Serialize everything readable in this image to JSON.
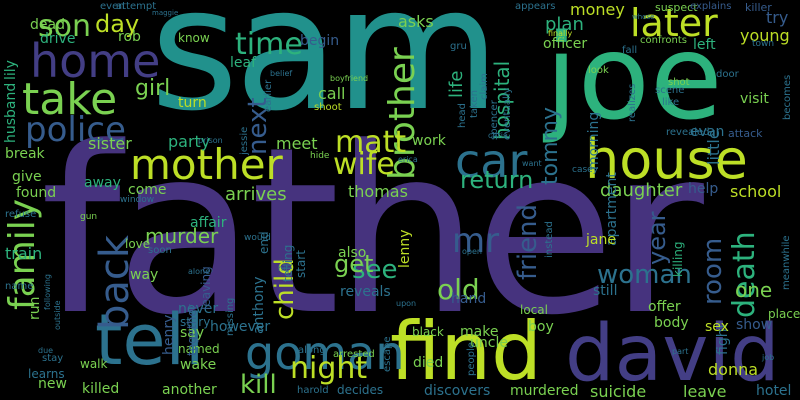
{
  "palette": {
    "purple": "#46337e",
    "indigo": "#433e85",
    "blue": "#365c8d",
    "steel": "#2c728e",
    "teal": "#21918c",
    "green": "#2db27d",
    "lime": "#7ad151",
    "yellow": "#bddf26",
    "dark": "#440154"
  },
  "words": [
    {
      "text": "father",
      "color": "#46337e"
    },
    {
      "text": "sam",
      "color": "#21918c"
    },
    {
      "text": "joe",
      "color": "#2db27d"
    },
    {
      "text": "find",
      "color": "#bddf26"
    },
    {
      "text": "david",
      "color": "#433e85"
    },
    {
      "text": "house",
      "color": "#bddf26"
    },
    {
      "text": "tell",
      "color": "#2c728e"
    },
    {
      "text": "home",
      "color": "#433e85"
    },
    {
      "text": "take",
      "color": "#7ad151"
    },
    {
      "text": "mother",
      "color": "#bddf26"
    },
    {
      "text": "car",
      "color": "#2c728e"
    },
    {
      "text": "goman",
      "color": "#2c728e"
    },
    {
      "text": "police",
      "color": "#365c8d"
    },
    {
      "text": "family",
      "color": "#7ad151"
    },
    {
      "text": "later",
      "color": "#bddf26"
    },
    {
      "text": "brother",
      "color": "#7ad151"
    },
    {
      "text": "wife",
      "color": "#bddf26"
    },
    {
      "text": "back",
      "color": "#365c8d"
    },
    {
      "text": "matt",
      "color": "#bddf26"
    },
    {
      "text": "time",
      "color": "#2db27d"
    },
    {
      "text": "son",
      "color": "#7ad151"
    },
    {
      "text": "day",
      "color": "#bddf26"
    },
    {
      "text": "night",
      "color": "#bddf26"
    },
    {
      "text": "kill",
      "color": "#7ad151"
    },
    {
      "text": "return",
      "color": "#2db27d"
    },
    {
      "text": "mr",
      "color": "#365c8d"
    },
    {
      "text": "friend",
      "color": "#365c8d"
    },
    {
      "text": "woman",
      "color": "#2c728e"
    },
    {
      "text": "old",
      "color": "#7ad151"
    },
    {
      "text": "death",
      "color": "#2db27d"
    },
    {
      "text": "room",
      "color": "#365c8d"
    },
    {
      "text": "child",
      "color": "#bddf26"
    },
    {
      "text": "see",
      "color": "#2db27d"
    },
    {
      "text": "get",
      "color": "#7ad151"
    },
    {
      "text": "next",
      "color": "#365c8d"
    },
    {
      "text": "girl",
      "color": "#7ad151"
    },
    {
      "text": "tommy",
      "color": "#2c728e"
    },
    {
      "text": "year",
      "color": "#365c8d"
    },
    {
      "text": "young",
      "color": "#bddf26"
    },
    {
      "text": "one",
      "color": "#7ad151"
    },
    {
      "text": "money",
      "color": "#bddf26"
    },
    {
      "text": "hospital",
      "color": "#2db27d"
    },
    {
      "text": "life",
      "color": "#2db27d"
    },
    {
      "text": "daughter",
      "color": "#7ad151"
    },
    {
      "text": "school",
      "color": "#bddf26"
    },
    {
      "text": "arrives",
      "color": "#7ad151"
    },
    {
      "text": "murder",
      "color": "#7ad151"
    },
    {
      "text": "thomas",
      "color": "#7ad151"
    },
    {
      "text": "train",
      "color": "#2db27d"
    },
    {
      "text": "sister",
      "color": "#7ad151"
    },
    {
      "text": "meet",
      "color": "#7ad151"
    },
    {
      "text": "party",
      "color": "#2db27d"
    },
    {
      "text": "call",
      "color": "#7ad151"
    },
    {
      "text": "turn",
      "color": "#bddf26"
    },
    {
      "text": "rob",
      "color": "#7ad151"
    },
    {
      "text": "drive",
      "color": "#2db27d"
    },
    {
      "text": "dead",
      "color": "#7ad151"
    },
    {
      "text": "plan",
      "color": "#2db27d"
    },
    {
      "text": "try",
      "color": "#365c8d"
    },
    {
      "text": "left",
      "color": "#2db27d"
    },
    {
      "text": "visit",
      "color": "#7ad151"
    },
    {
      "text": "evan",
      "color": "#2c728e"
    },
    {
      "text": "apartment",
      "color": "#2c728e"
    },
    {
      "text": "morning",
      "color": "#2c728e"
    },
    {
      "text": "little",
      "color": "#2c728e"
    },
    {
      "text": "officer",
      "color": "#7ad151"
    },
    {
      "text": "begin",
      "color": "#365c8d"
    },
    {
      "text": "know",
      "color": "#7ad151"
    },
    {
      "text": "asks",
      "color": "#7ad151"
    },
    {
      "text": "leaf",
      "color": "#2db27d"
    },
    {
      "text": "affair",
      "color": "#2db27d"
    },
    {
      "text": "come",
      "color": "#7ad151"
    },
    {
      "text": "away",
      "color": "#2db27d"
    },
    {
      "text": "give",
      "color": "#7ad151"
    },
    {
      "text": "found",
      "color": "#7ad151"
    },
    {
      "text": "break",
      "color": "#7ad151"
    },
    {
      "text": "husband",
      "color": "#2db27d"
    },
    {
      "text": "lily",
      "color": "#2db27d"
    },
    {
      "text": "work",
      "color": "#7ad151"
    },
    {
      "text": "help",
      "color": "#365c8d"
    },
    {
      "text": "way",
      "color": "#7ad151"
    },
    {
      "text": "love",
      "color": "#7ad151"
    },
    {
      "text": "also",
      "color": "#7ad151"
    },
    {
      "text": "reveals",
      "color": "#2c728e"
    },
    {
      "text": "lenny",
      "color": "#bddf26"
    },
    {
      "text": "jane",
      "color": "#bddf26"
    },
    {
      "text": "hand",
      "color": "#365c8d"
    },
    {
      "text": "uncle",
      "color": "#7ad151"
    },
    {
      "text": "offer",
      "color": "#7ad151"
    },
    {
      "text": "still",
      "color": "#2c728e"
    },
    {
      "text": "body",
      "color": "#7ad151"
    },
    {
      "text": "fight",
      "color": "#2c728e"
    },
    {
      "text": "killing",
      "color": "#2db27d"
    },
    {
      "text": "place",
      "color": "#7ad151"
    },
    {
      "text": "show",
      "color": "#365c8d"
    },
    {
      "text": "sex",
      "color": "#bddf26"
    },
    {
      "text": "however",
      "color": "#2c728e"
    },
    {
      "text": "make",
      "color": "#7ad151"
    },
    {
      "text": "boy",
      "color": "#7ad151"
    },
    {
      "text": "local",
      "color": "#7ad151"
    },
    {
      "text": "died",
      "color": "#7ad151"
    },
    {
      "text": "black",
      "color": "#7ad151"
    },
    {
      "text": "suicide",
      "color": "#7ad151"
    },
    {
      "text": "leave",
      "color": "#7ad151"
    },
    {
      "text": "donna",
      "color": "#bddf26"
    },
    {
      "text": "hotel",
      "color": "#2c728e"
    },
    {
      "text": "discovers",
      "color": "#2c728e"
    },
    {
      "text": "murdered",
      "color": "#7ad151"
    },
    {
      "text": "decides",
      "color": "#2c728e"
    },
    {
      "text": "another",
      "color": "#7ad151"
    },
    {
      "text": "wake",
      "color": "#7ad151"
    },
    {
      "text": "say",
      "color": "#7ad151"
    },
    {
      "text": "named",
      "color": "#7ad151"
    },
    {
      "text": "story",
      "color": "#2c728e"
    },
    {
      "text": "never",
      "color": "#2c728e"
    },
    {
      "text": "anthony",
      "color": "#2c728e"
    },
    {
      "text": "henry",
      "color": "#365c8d"
    },
    {
      "text": "killed",
      "color": "#7ad151"
    },
    {
      "text": "new",
      "color": "#7ad151"
    },
    {
      "text": "learns",
      "color": "#2c728e"
    },
    {
      "text": "walk",
      "color": "#7ad151"
    },
    {
      "text": "leaving",
      "color": "#365c8d"
    },
    {
      "text": "together",
      "color": "#365c8d"
    },
    {
      "text": "end",
      "color": "#2c728e"
    },
    {
      "text": "telling",
      "color": "#2c728e"
    },
    {
      "text": "start",
      "color": "#2c728e"
    },
    {
      "text": "along",
      "color": "#2c728e"
    },
    {
      "text": "arrested",
      "color": "#7ad151"
    },
    {
      "text": "escape",
      "color": "#2c728e"
    },
    {
      "text": "harold",
      "color": "#2c728e"
    },
    {
      "text": "people",
      "color": "#2c728e"
    },
    {
      "text": "instead",
      "color": "#2c728e"
    },
    {
      "text": "even",
      "color": "#2c728e"
    },
    {
      "text": "attempt",
      "color": "#2c728e"
    },
    {
      "text": "appears",
      "color": "#2c728e"
    },
    {
      "text": "suspect",
      "color": "#7ad151"
    },
    {
      "text": "explains",
      "color": "#365c8d"
    },
    {
      "text": "killer",
      "color": "#365c8d"
    },
    {
      "text": "finally",
      "color": "#bddf26"
    },
    {
      "text": "gru",
      "color": "#2c728e"
    },
    {
      "text": "taken",
      "color": "#2c728e"
    },
    {
      "text": "claim",
      "color": "#2c728e"
    },
    {
      "text": "spencer",
      "color": "#2c728e"
    },
    {
      "text": "eventually",
      "color": "#2c728e"
    },
    {
      "text": "confronts",
      "color": "#7ad151"
    },
    {
      "text": "town",
      "color": "#2c728e"
    },
    {
      "text": "door",
      "color": "#2c728e"
    },
    {
      "text": "scene",
      "color": "#2c728e"
    },
    {
      "text": "like",
      "color": "#2c728e"
    },
    {
      "text": "shot",
      "color": "#7ad151"
    },
    {
      "text": "revealed",
      "color": "#2c728e"
    },
    {
      "text": "attack",
      "color": "#365c8d"
    },
    {
      "text": "realizes",
      "color": "#2c728e"
    },
    {
      "text": "shoot",
      "color": "#bddf26"
    },
    {
      "text": "boyfriend",
      "color": "#7ad151"
    },
    {
      "text": "earlier",
      "color": "#2c728e"
    },
    {
      "text": "belief",
      "color": "#2c728e"
    },
    {
      "text": "prison",
      "color": "#2c728e"
    },
    {
      "text": "jessie",
      "color": "#2c728e"
    },
    {
      "text": "hide",
      "color": "#7ad151"
    },
    {
      "text": "erica",
      "color": "#2c728e"
    },
    {
      "text": "window",
      "color": "#2c728e"
    },
    {
      "text": "gun",
      "color": "#7ad151"
    },
    {
      "text": "soon",
      "color": "#2c728e"
    },
    {
      "text": "would",
      "color": "#2c728e"
    },
    {
      "text": "refuse",
      "color": "#2c728e"
    },
    {
      "text": "open",
      "color": "#2c728e"
    },
    {
      "text": "want",
      "color": "#2c728e"
    },
    {
      "text": "casey",
      "color": "#2c728e"
    },
    {
      "text": "alone",
      "color": "#2c728e"
    },
    {
      "text": "hit",
      "color": "#2c728e"
    },
    {
      "text": "missing",
      "color": "#2c728e"
    },
    {
      "text": "upon",
      "color": "#2c728e"
    },
    {
      "text": "part",
      "color": "#2c728e"
    },
    {
      "text": "job",
      "color": "#2c728e"
    },
    {
      "text": "name",
      "color": "#2c728e"
    },
    {
      "text": "due",
      "color": "#2c728e"
    },
    {
      "text": "stay",
      "color": "#2c728e"
    },
    {
      "text": "outside",
      "color": "#2c728e"
    },
    {
      "text": "following",
      "color": "#2c728e"
    },
    {
      "text": "run",
      "color": "#7ad151"
    },
    {
      "text": "meanwhile",
      "color": "#2c728e"
    },
    {
      "text": "becomes",
      "color": "#2c728e"
    },
    {
      "text": "look",
      "color": "#7ad151"
    },
    {
      "text": "fall",
      "color": "#2c728e"
    },
    {
      "text": "head",
      "color": "#2c728e"
    },
    {
      "text": "chris",
      "color": "#2c728e"
    },
    {
      "text": "maggie",
      "color": "#2c728e"
    },
    {
      "text": "whose",
      "color": "#2c728e"
    }
  ]
}
